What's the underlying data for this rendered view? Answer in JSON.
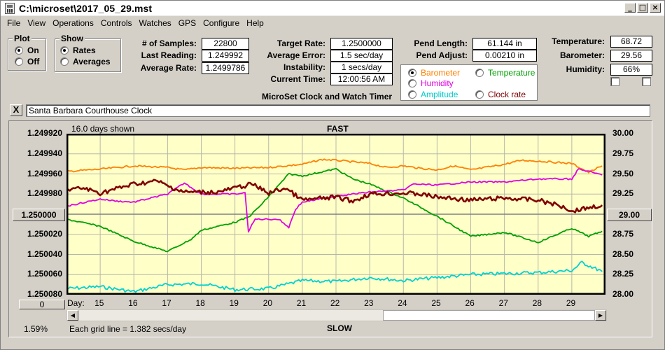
{
  "window": {
    "title": "C:\\microset\\2017_05_29.mst"
  },
  "menu": [
    "File",
    "View",
    "Operations",
    "Controls",
    "Watches",
    "GPS",
    "Configure",
    "Help"
  ],
  "plot_group": {
    "title": "Plot",
    "options": [
      {
        "label": "On",
        "selected": true
      },
      {
        "label": "Off",
        "selected": false
      }
    ]
  },
  "show_group": {
    "title": "Show",
    "options": [
      {
        "label": "Rates",
        "selected": true
      },
      {
        "label": "Averages",
        "selected": false
      }
    ]
  },
  "stats": {
    "samples_label": "# of Samples:",
    "samples": "22800",
    "last_label": "Last Reading:",
    "last": "1.249992",
    "avg_label": "Average Rate:",
    "avg": "1.2499786",
    "target_label": "Target Rate:",
    "target": "1.2500000",
    "error_label": "Average Error:",
    "error": "1.5 sec/day",
    "instab_label": "Instability:",
    "instab": "1 secs/day",
    "time_label": "Current Time:",
    "time": "12:00:56 AM",
    "pend_len_label": "Pend Length:",
    "pend_len": "61.144 in",
    "pend_adj_label": "Pend Adjust:",
    "pend_adj": "0.00210 in",
    "temp_label": "Temperature:",
    "temp": "68.72",
    "baro_label": "Barometer:",
    "baro": "29.56",
    "hum_label": "Humidity:",
    "hum": "66%"
  },
  "legend": [
    {
      "label": "Barometer",
      "color": "#ff8000",
      "selected": true
    },
    {
      "label": "Temperature",
      "color": "#00a000",
      "selected": false
    },
    {
      "label": "Humidity",
      "color": "#e000e0",
      "selected": false
    },
    {
      "label": "Amplitude",
      "color": "#00d0d0",
      "selected": false
    },
    {
      "label": "Clock rate",
      "color": "#800000",
      "selected": false
    }
  ],
  "subtitle": "MicroSet Clock and Watch Timer",
  "clock_name": "Santa Barbara Courthouse Clock",
  "close_label": "X",
  "chart_info": {
    "days_shown": "16.0 days shown",
    "fast": "FAST",
    "slow": "SLOW",
    "grid_note": "Each grid line = 1.382 secs/day",
    "percent": "1.59%",
    "day_prefix": "Day:",
    "left_button": "1.250000",
    "right_button": "29.00",
    "zero_button": "0"
  },
  "chart_data": {
    "type": "line",
    "x_label": "Day",
    "days": [
      "15",
      "16",
      "17",
      "18",
      "19",
      "20",
      "21",
      "22",
      "23",
      "24",
      "25",
      "26",
      "27",
      "28",
      "29"
    ],
    "left_axis": {
      "ticks": [
        "1.249920",
        "1.249940",
        "1.249960",
        "1.249980",
        "1.250000",
        "1.250020",
        "1.250040",
        "1.250060",
        "1.250080"
      ],
      "range": [
        1.24992,
        1.25008
      ]
    },
    "right_axis": {
      "ticks": [
        "30.00",
        "29.75",
        "29.50",
        "29.25",
        "29.00",
        "28.75",
        "28.50",
        "28.25",
        "28.00"
      ],
      "range": [
        28.0,
        30.0
      ]
    },
    "x_range": [
      14.0,
      30.0
    ],
    "grid": true,
    "series": [
      {
        "name": "Barometer",
        "color": "#ff8000",
        "axis": "right",
        "points": [
          [
            14,
            29.53
          ],
          [
            15,
            29.56
          ],
          [
            16,
            29.6
          ],
          [
            17,
            29.58
          ],
          [
            17.5,
            29.55
          ],
          [
            18,
            29.58
          ],
          [
            19,
            29.57
          ],
          [
            20,
            29.58
          ],
          [
            21,
            29.62
          ],
          [
            21.6,
            29.68
          ],
          [
            22,
            29.67
          ],
          [
            23,
            29.63
          ],
          [
            23.5,
            29.58
          ],
          [
            24,
            29.6
          ],
          [
            24.5,
            29.57
          ],
          [
            25,
            29.55
          ],
          [
            25.5,
            29.6
          ],
          [
            26,
            29.55
          ],
          [
            27,
            29.62
          ],
          [
            27.5,
            29.67
          ],
          [
            28,
            29.66
          ],
          [
            29,
            29.63
          ],
          [
            29.5,
            29.52
          ],
          [
            29.9,
            29.6
          ]
        ]
      },
      {
        "name": "Clock rate",
        "color": "#800000",
        "axis": "left",
        "points": [
          [
            14,
            1.249976
          ],
          [
            14.5,
            1.249974
          ],
          [
            15,
            1.249979
          ],
          [
            16,
            1.24997
          ],
          [
            16.7,
            1.249967
          ],
          [
            17,
            1.249972
          ],
          [
            17.5,
            1.249978
          ],
          [
            18,
            1.249978
          ],
          [
            18.5,
            1.249978
          ],
          [
            19,
            1.249974
          ],
          [
            19.5,
            1.24997
          ],
          [
            20,
            1.249979
          ],
          [
            20.5,
            1.249974
          ],
          [
            21,
            1.249986
          ],
          [
            22,
            1.249983
          ],
          [
            22.5,
            1.249987
          ],
          [
            23,
            1.24998
          ],
          [
            24,
            1.249979
          ],
          [
            24.5,
            1.24998
          ],
          [
            25,
            1.249983
          ],
          [
            26,
            1.249986
          ],
          [
            27,
            1.249984
          ],
          [
            28,
            1.249986
          ],
          [
            28.8,
            1.249993
          ],
          [
            29,
            1.249997
          ],
          [
            29.4,
            1.249994
          ],
          [
            29.9,
            1.249991
          ]
        ]
      },
      {
        "name": "Humidity",
        "color": "#e000e0",
        "axis": "left",
        "points": [
          [
            14,
            1.249992
          ],
          [
            15,
            1.249985
          ],
          [
            15.5,
            1.249987
          ],
          [
            16,
            1.249988
          ],
          [
            17,
            1.24998
          ],
          [
            17.5,
            1.249969
          ],
          [
            18,
            1.24998
          ],
          [
            19,
            1.24998
          ],
          [
            19.3,
            1.249979
          ],
          [
            19.4,
            1.250017
          ],
          [
            19.6,
            1.250005
          ],
          [
            20.3,
            1.250005
          ],
          [
            20.6,
            1.250013
          ],
          [
            20.8,
            1.249995
          ],
          [
            21,
            1.249988
          ],
          [
            22,
            1.249982
          ],
          [
            23,
            1.249978
          ],
          [
            24,
            1.249976
          ],
          [
            24.3,
            1.24997
          ],
          [
            25,
            1.249971
          ],
          [
            26,
            1.249968
          ],
          [
            27,
            1.249968
          ],
          [
            28,
            1.249965
          ],
          [
            29,
            1.249965
          ],
          [
            29.2,
            1.249955
          ],
          [
            29.9,
            1.249961
          ]
        ]
      },
      {
        "name": "Temperature",
        "color": "#00a000",
        "axis": "left",
        "points": [
          [
            14,
            1.250005
          ],
          [
            15,
            1.250012
          ],
          [
            16,
            1.250027
          ],
          [
            17,
            1.250037
          ],
          [
            17.7,
            1.250025
          ],
          [
            18,
            1.250016
          ],
          [
            19,
            1.250008
          ],
          [
            19.4,
            1.250003
          ],
          [
            19.8,
            1.24999
          ],
          [
            20.2,
            1.249975
          ],
          [
            20.6,
            1.24996
          ],
          [
            21,
            1.249962
          ],
          [
            22,
            1.249955
          ],
          [
            22.5,
            1.249965
          ],
          [
            23,
            1.24997
          ],
          [
            24,
            1.249984
          ],
          [
            25,
            1.250002
          ],
          [
            26,
            1.250022
          ],
          [
            27,
            1.250018
          ],
          [
            28,
            1.250028
          ],
          [
            29,
            1.250014
          ],
          [
            29.5,
            1.250022
          ],
          [
            29.9,
            1.250017
          ]
        ]
      },
      {
        "name": "Amplitude",
        "color": "#00d0d0",
        "axis": "left",
        "points": [
          [
            14,
            1.250074
          ],
          [
            15,
            1.250072
          ],
          [
            16,
            1.250077
          ],
          [
            17,
            1.25007
          ],
          [
            18,
            1.250069
          ],
          [
            19,
            1.250075
          ],
          [
            20,
            1.250074
          ],
          [
            21,
            1.250066
          ],
          [
            22,
            1.250067
          ],
          [
            23,
            1.250063
          ],
          [
            24,
            1.250066
          ],
          [
            25,
            1.250063
          ],
          [
            26,
            1.25006
          ],
          [
            27,
            1.250059
          ],
          [
            28,
            1.250058
          ],
          [
            29,
            1.250056
          ],
          [
            29.3,
            1.250048
          ],
          [
            29.9,
            1.250057
          ]
        ]
      }
    ]
  }
}
